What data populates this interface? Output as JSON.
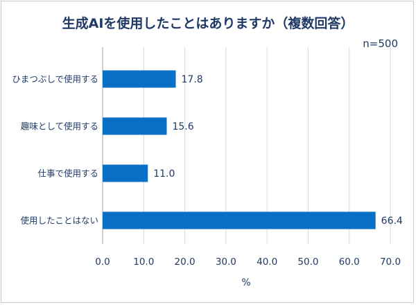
{
  "chart_data": {
    "type": "bar",
    "orientation": "horizontal",
    "title": "生成AIを使用したことはありますか（複数回答）",
    "note": "n=500",
    "categories": [
      "ひまつぶしで使用する",
      "趣味として使用する",
      "仕事で使用する",
      "使用したことはない"
    ],
    "values": [
      17.8,
      15.6,
      11.0,
      66.4
    ],
    "value_labels": [
      "17.8",
      "15.6",
      "11.0",
      "66.4"
    ],
    "xlabel": "%",
    "ylabel": "",
    "xlim": [
      0,
      70
    ],
    "xticks": [
      0,
      10,
      20,
      30,
      40,
      50,
      60,
      70
    ],
    "xtick_labels": [
      "0.0",
      "10.0",
      "20.0",
      "30.0",
      "40.0",
      "50.0",
      "60.0",
      "70.0"
    ],
    "grid": true,
    "legend": "none",
    "colors": {
      "bar": "#0a70c5",
      "text": "#1f3864",
      "grid": "#d9d9d9",
      "frame": "#c9c9c9"
    }
  }
}
